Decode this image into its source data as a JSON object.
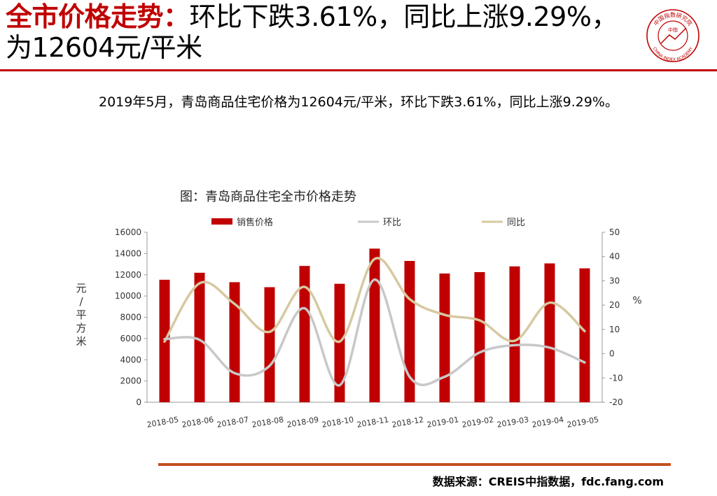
{
  "header": {
    "title_accent": "全市价格走势：",
    "title_rest": "环比下跌3.61%，同比上涨9.29%，为12604元/平米",
    "logo": {
      "name": "china-index-academy-seal",
      "text_cn": "中国指数研究院",
      "text_en": "CHINA INDEX ACADEMY",
      "center": "中指"
    }
  },
  "summary": "2019年5月，青岛商品住宅价格为12604元/平米，环比下跌3.61%，同比上涨9.29%。",
  "footer": {
    "source": "数据来源：CREIS中指数据，fdc.fang.com"
  },
  "colors": {
    "accent": "#c00000",
    "bar": "#c00000",
    "mom_line": "#c8c8c8",
    "yoy_line": "#d6c9a1",
    "footer_rule": "#c0501e"
  },
  "chart_data": {
    "type": "bar",
    "title": "图：青岛商品住宅全市价格走势",
    "categories": [
      "2018-05",
      "2018-06",
      "2018-07",
      "2018-08",
      "2018-09",
      "2018-10",
      "2018-11",
      "2018-12",
      "2019-01",
      "2019-02",
      "2019-03",
      "2019-04",
      "2019-05"
    ],
    "series": [
      {
        "name": "销售价格",
        "type": "bar",
        "axis": "left",
        "values": [
          11530,
          12190,
          11300,
          10830,
          12830,
          11150,
          14460,
          13300,
          12120,
          12250,
          12790,
          13070,
          12604
        ]
      },
      {
        "name": "环比",
        "type": "line",
        "axis": "right",
        "values": [
          6,
          5.7,
          -8,
          -5,
          18.7,
          -13,
          30.5,
          -9.5,
          -9.5,
          0.5,
          3.5,
          2.5,
          -3.61
        ]
      },
      {
        "name": "同比",
        "type": "line",
        "axis": "right",
        "values": [
          5,
          29,
          20.5,
          9,
          27.5,
          5,
          39,
          22.5,
          16,
          13.7,
          5.3,
          21,
          9.29
        ]
      }
    ],
    "ylabel": "元/平方米",
    "y2label": "%",
    "ylim": [
      0,
      16000
    ],
    "yticks": [
      "0",
      "2000",
      "4000",
      "6000",
      "8000",
      "10000",
      "12000",
      "14000",
      "16000"
    ],
    "y2lim": [
      -20,
      50
    ],
    "y2ticks": [
      "-20",
      "-10",
      "0",
      "10",
      "20",
      "30",
      "40",
      "50"
    ],
    "legend": "top",
    "grid": false
  }
}
